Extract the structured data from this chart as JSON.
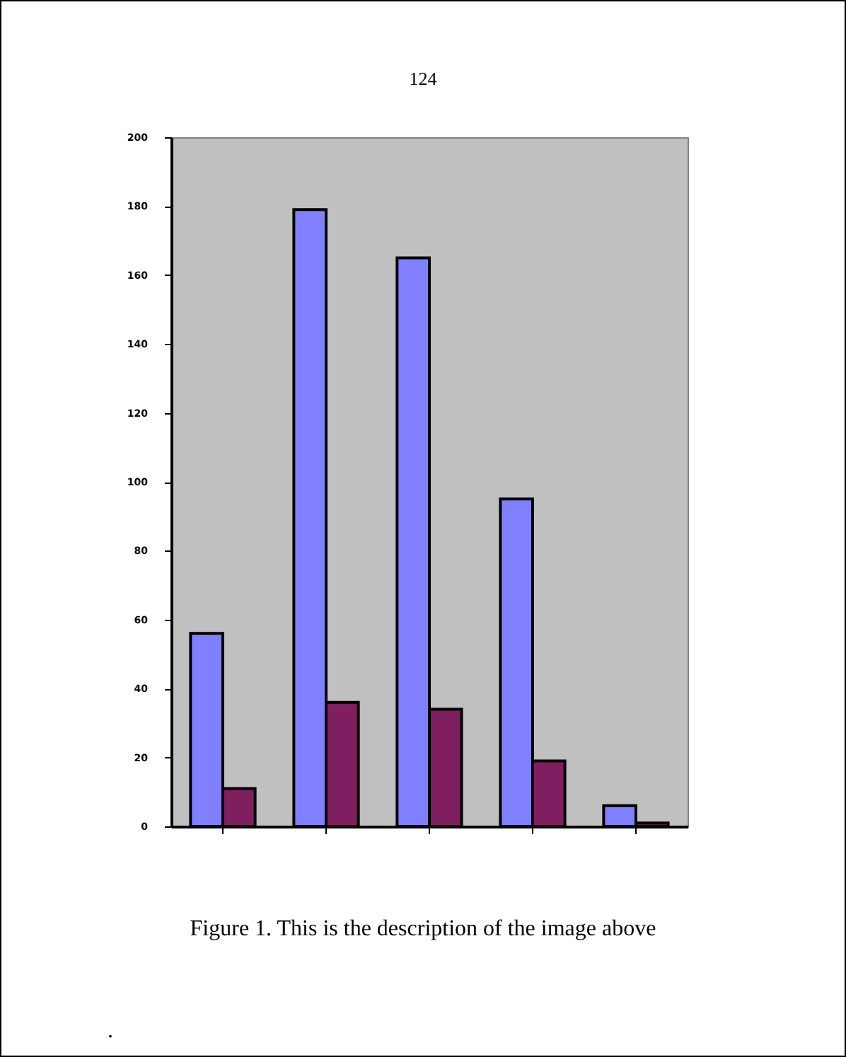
{
  "chart_data": {
    "type": "bar",
    "title": "124",
    "categories": [
      null,
      null,
      null,
      null,
      null
    ],
    "series": [
      {
        "color": "#8080ff",
        "values": [
          56,
          179,
          165,
          95,
          6
        ]
      },
      {
        "color": "#7f1f5f",
        "values": [
          11,
          36,
          34,
          19,
          1
        ]
      }
    ],
    "ylim": [
      0,
      200
    ],
    "yticks": [
      0,
      20,
      40,
      60,
      80,
      100,
      120,
      140,
      160,
      180,
      200
    ],
    "grid": false,
    "legend": false,
    "annotations": [
      "Figure 1. This is the description of the image above",
      "."
    ]
  }
}
